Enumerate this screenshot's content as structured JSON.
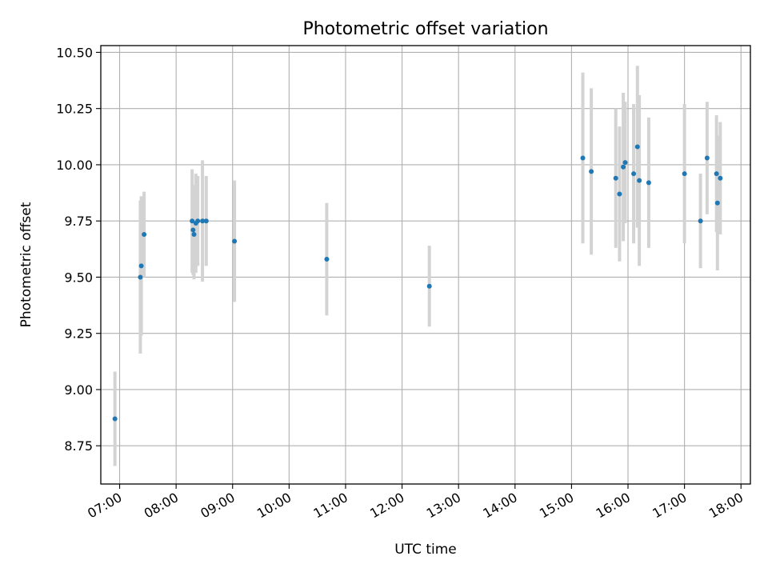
{
  "chart_data": {
    "type": "scatter",
    "title": "Photometric offset variation",
    "xlabel": "UTC time",
    "ylabel": "Photometric offset",
    "grid": true,
    "x_axis_kind": "time",
    "xlim": [
      "06:40",
      "18:10"
    ],
    "ylim": [
      8.58,
      10.53
    ],
    "x_ticks": [
      "07:00",
      "08:00",
      "09:00",
      "10:00",
      "11:00",
      "12:00",
      "13:00",
      "14:00",
      "15:00",
      "16:00",
      "17:00",
      "18:00"
    ],
    "y_ticks": [
      "8.75",
      "9.00",
      "9.25",
      "9.50",
      "9.75",
      "10.00",
      "10.25",
      "10.50"
    ],
    "colors": {
      "point": "#1f77b4",
      "errorbar": "#d3d3d3",
      "grid": "#b0b0b0"
    },
    "series": [
      {
        "points": [
          {
            "x": "06:55",
            "y": 8.87,
            "err": 0.21
          },
          {
            "x": "07:22",
            "y": 9.5,
            "err": 0.34
          },
          {
            "x": "07:23",
            "y": 9.55,
            "err": 0.31
          },
          {
            "x": "07:26",
            "y": 9.69,
            "err": 0.19
          },
          {
            "x": "08:17",
            "y": 9.75,
            "err": 0.23
          },
          {
            "x": "08:18",
            "y": 9.71,
            "err": 0.2
          },
          {
            "x": "08:19",
            "y": 9.69,
            "err": 0.2
          },
          {
            "x": "08:21",
            "y": 9.74,
            "err": 0.22
          },
          {
            "x": "08:23",
            "y": 9.75,
            "err": 0.2
          },
          {
            "x": "08:28",
            "y": 9.75,
            "err": 0.27
          },
          {
            "x": "08:32",
            "y": 9.75,
            "err": 0.2
          },
          {
            "x": "09:02",
            "y": 9.66,
            "err": 0.27
          },
          {
            "x": "10:40",
            "y": 9.58,
            "err": 0.25
          },
          {
            "x": "12:29",
            "y": 9.46,
            "err": 0.18
          },
          {
            "x": "15:12",
            "y": 10.03,
            "err": 0.38
          },
          {
            "x": "15:21",
            "y": 9.97,
            "err": 0.37
          },
          {
            "x": "15:47",
            "y": 9.94,
            "err": 0.31
          },
          {
            "x": "15:51",
            "y": 9.87,
            "err": 0.3
          },
          {
            "x": "15:55",
            "y": 9.99,
            "err": 0.33
          },
          {
            "x": "15:57",
            "y": 10.01,
            "err": 0.27
          },
          {
            "x": "16:06",
            "y": 9.96,
            "err": 0.31
          },
          {
            "x": "16:10",
            "y": 10.08,
            "err": 0.36
          },
          {
            "x": "16:12",
            "y": 9.93,
            "err": 0.38
          },
          {
            "x": "16:22",
            "y": 9.92,
            "err": 0.29
          },
          {
            "x": "17:00",
            "y": 9.96,
            "err": 0.31
          },
          {
            "x": "17:17",
            "y": 9.75,
            "err": 0.21
          },
          {
            "x": "17:24",
            "y": 10.03,
            "err": 0.25
          },
          {
            "x": "17:34",
            "y": 9.96,
            "err": 0.26
          },
          {
            "x": "17:35",
            "y": 9.83,
            "err": 0.3
          },
          {
            "x": "17:38",
            "y": 9.94,
            "err": 0.25
          }
        ]
      }
    ]
  }
}
